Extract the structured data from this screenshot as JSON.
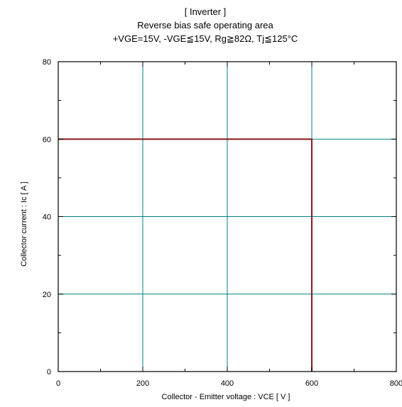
{
  "chart_data": {
    "type": "line",
    "title_lines": [
      "[ Inverter ]",
      "Reverse bias safe operating area",
      "+VGE=15V,  -VGE≦15V, Rg≧82Ω,  Tj≦125°C"
    ],
    "xlabel": "Collector - Emitter voltage  :  VCE  [ V ]",
    "ylabel": "Collector current  :  Ic  [ A ]",
    "xlim": [
      0,
      800
    ],
    "ylim": [
      0,
      80
    ],
    "x_ticks": [
      0,
      200,
      400,
      600,
      800
    ],
    "y_ticks": [
      0,
      20,
      40,
      60,
      80
    ],
    "x_tick_labels": [
      "0",
      "200",
      "400",
      "600",
      "800"
    ],
    "y_tick_labels": [
      "0",
      "20",
      "40",
      "60",
      "80"
    ],
    "grid": true,
    "grid_color": "#008080",
    "series": [
      {
        "color": "#8b1a1a",
        "x": [
          0,
          600,
          600
        ],
        "y": [
          60,
          60,
          0
        ]
      }
    ]
  }
}
